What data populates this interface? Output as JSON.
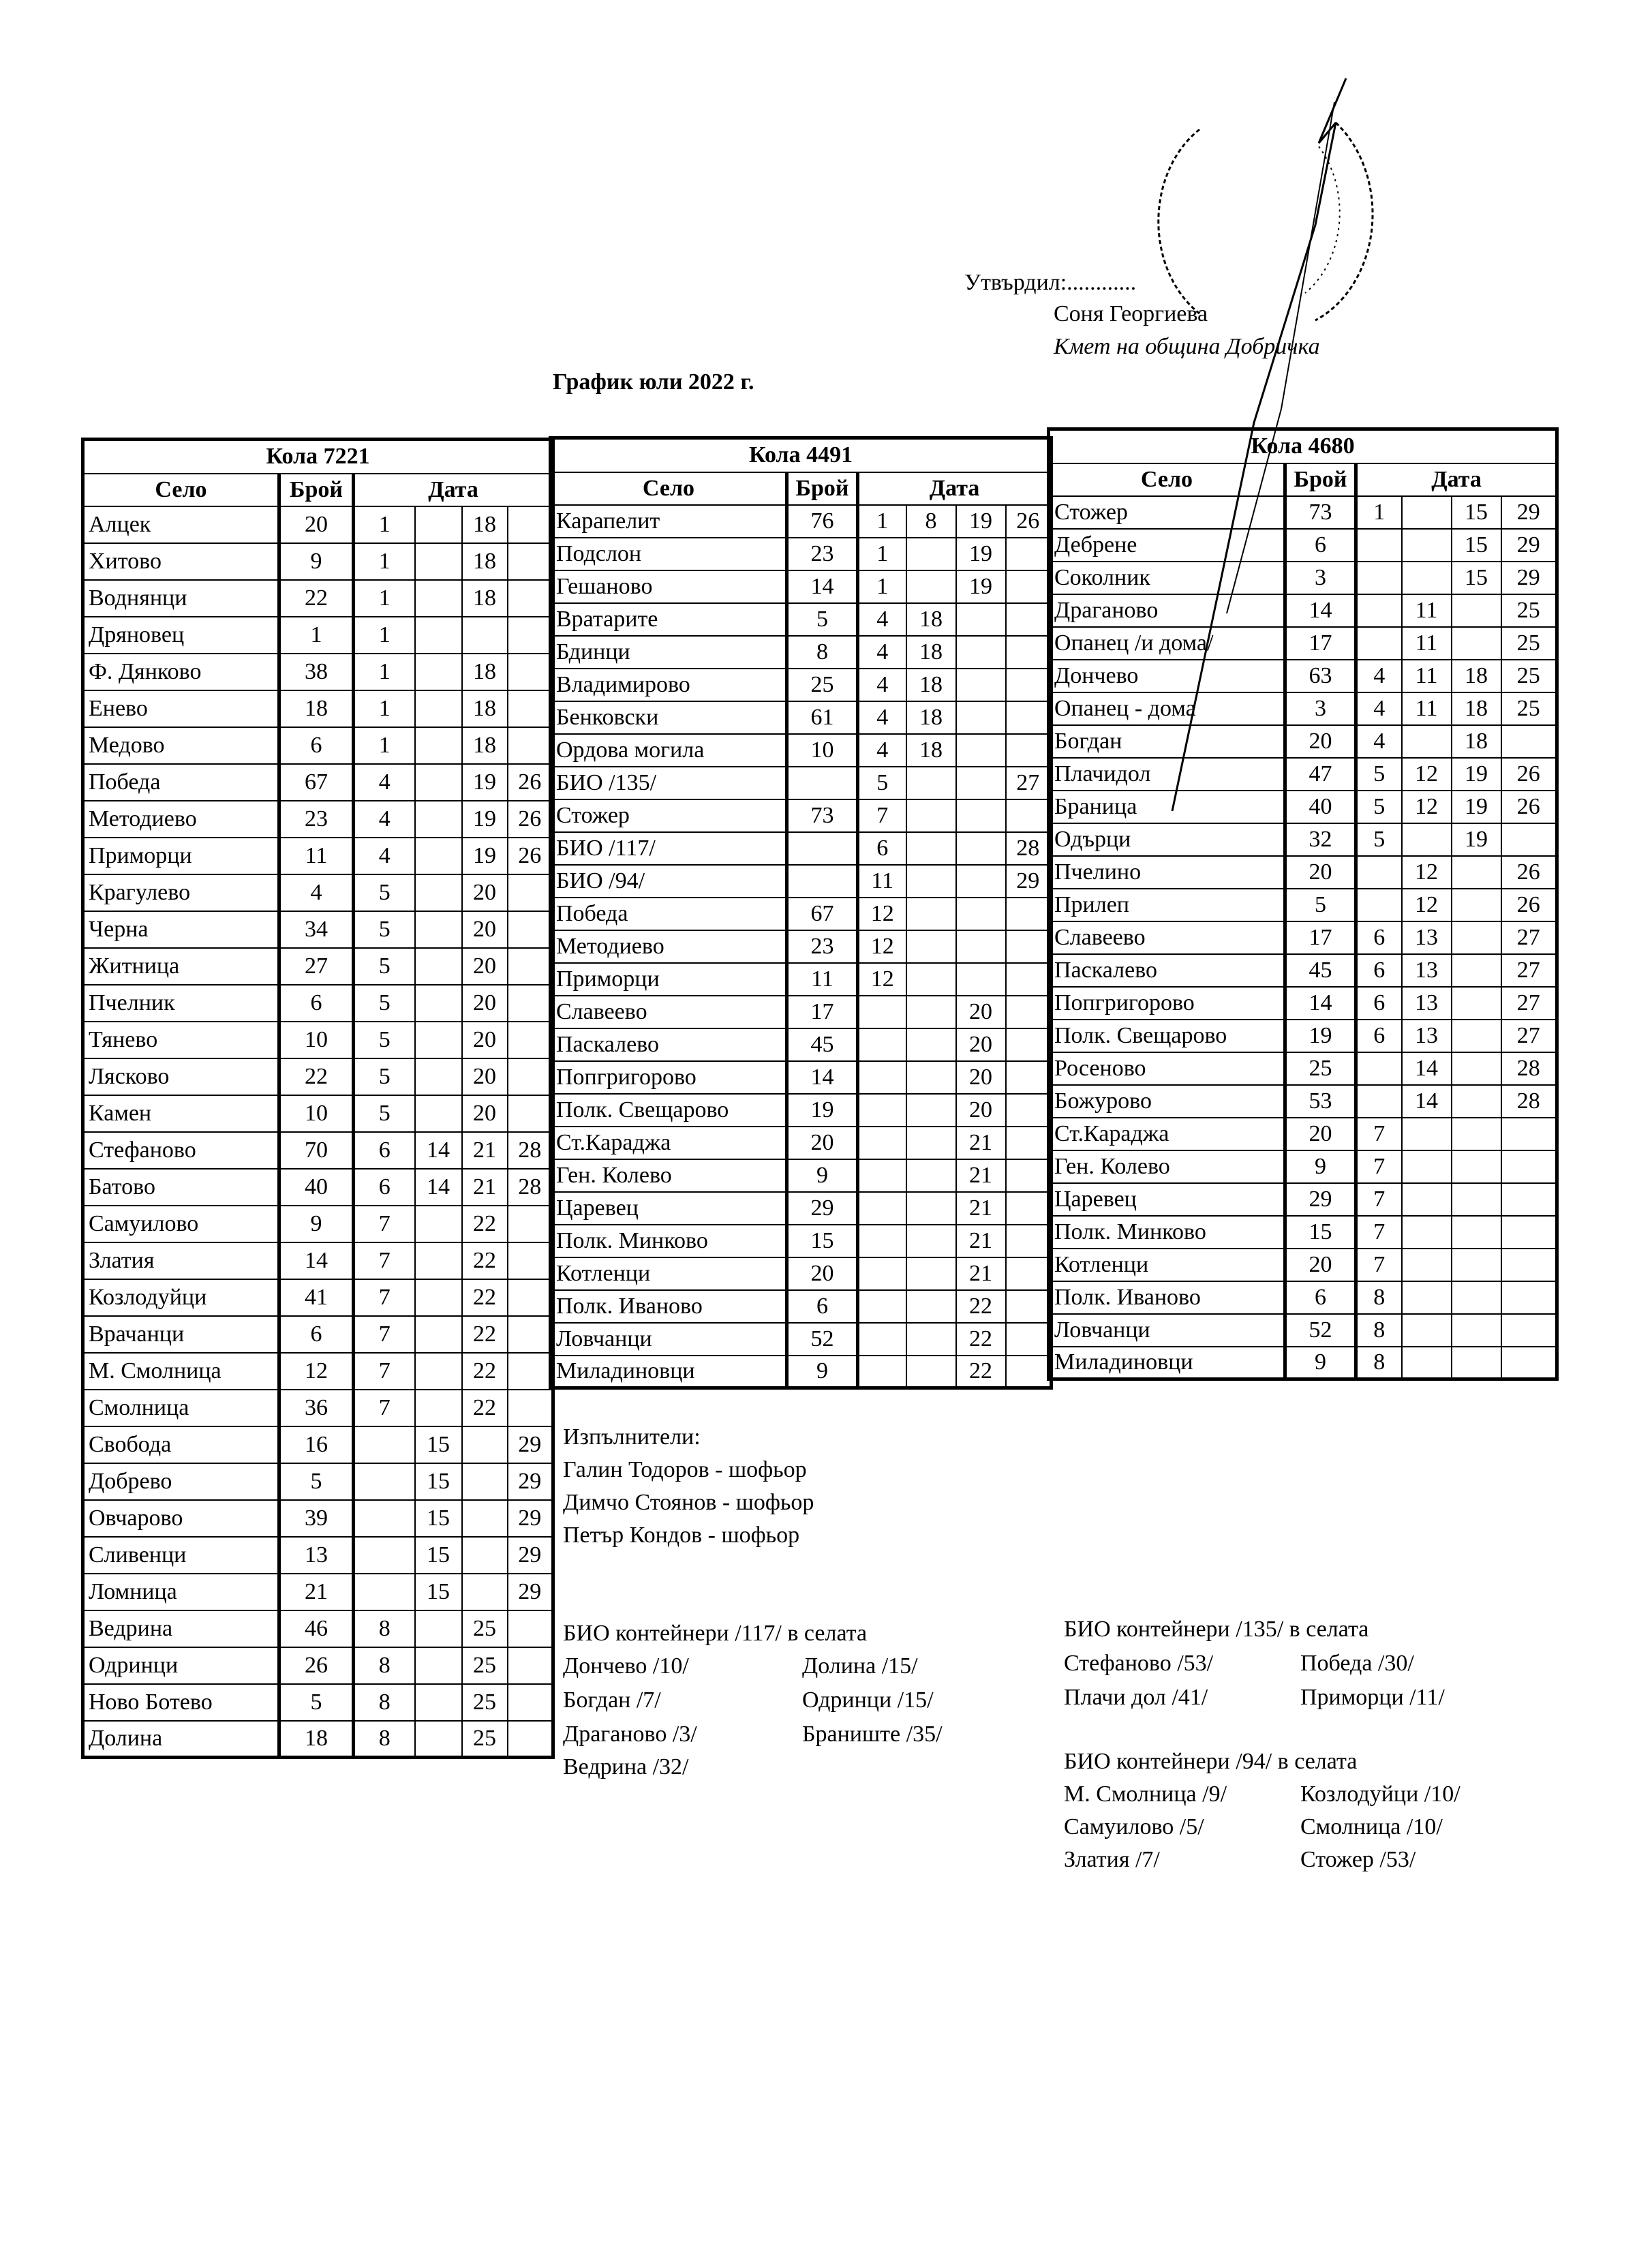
{
  "approval": {
    "approved_by": "Утвърдил:............",
    "name": "Соня Георгиева",
    "position": "Кмет  на община Добричка"
  },
  "title": "График юли 2022 г.",
  "headers": {
    "village": "Село",
    "count": "Брой",
    "date": "Дата"
  },
  "trucks": [
    {
      "label": "Кола 7221",
      "rows": [
        [
          "Алцек",
          "20",
          "1",
          "",
          "18",
          ""
        ],
        [
          "Хитово",
          "9",
          "1",
          "",
          "18",
          ""
        ],
        [
          "Воднянци",
          "22",
          "1",
          "",
          "18",
          ""
        ],
        [
          "Дряновец",
          "1",
          "1",
          "",
          "",
          ""
        ],
        [
          "Ф. Дянково",
          "38",
          "1",
          "",
          "18",
          ""
        ],
        [
          "Енево",
          "18",
          "1",
          "",
          "18",
          ""
        ],
        [
          "Медово",
          "6",
          "1",
          "",
          "18",
          ""
        ],
        [
          "Победа",
          "67",
          "4",
          "",
          "19",
          "26"
        ],
        [
          "Методиево",
          "23",
          "4",
          "",
          "19",
          "26"
        ],
        [
          "Приморци",
          "11",
          "4",
          "",
          "19",
          "26"
        ],
        [
          "Крагулево",
          "4",
          "5",
          "",
          "20",
          ""
        ],
        [
          "Черна",
          "34",
          "5",
          "",
          "20",
          ""
        ],
        [
          "Житница",
          "27",
          "5",
          "",
          "20",
          ""
        ],
        [
          "Пчелник",
          "6",
          "5",
          "",
          "20",
          ""
        ],
        [
          "Тянево",
          "10",
          "5",
          "",
          "20",
          ""
        ],
        [
          "Лясково",
          "22",
          "5",
          "",
          "20",
          ""
        ],
        [
          "Камен",
          "10",
          "5",
          "",
          "20",
          ""
        ],
        [
          "Стефаново",
          "70",
          "6",
          "14",
          "21",
          "28"
        ],
        [
          "Батово",
          "40",
          "6",
          "14",
          "21",
          "28"
        ],
        [
          "Самуилово",
          "9",
          "7",
          "",
          "22",
          ""
        ],
        [
          "Златия",
          "14",
          "7",
          "",
          "22",
          ""
        ],
        [
          "Козлодуйци",
          "41",
          "7",
          "",
          "22",
          ""
        ],
        [
          "Врачанци",
          "6",
          "7",
          "",
          "22",
          ""
        ],
        [
          "М. Смолница",
          "12",
          "7",
          "",
          "22",
          ""
        ],
        [
          "Смолница",
          "36",
          "7",
          "",
          "22",
          ""
        ],
        [
          "Свобода",
          "16",
          "",
          "15",
          "",
          "29"
        ],
        [
          "Добрево",
          "5",
          "",
          "15",
          "",
          "29"
        ],
        [
          "Овчарово",
          "39",
          "",
          "15",
          "",
          "29"
        ],
        [
          "Сливенци",
          "13",
          "",
          "15",
          "",
          "29"
        ],
        [
          "Ломница",
          "21",
          "",
          "15",
          "",
          "29"
        ],
        [
          "Ведрина",
          "46",
          "8",
          "",
          "25",
          ""
        ],
        [
          "Одринци",
          "26",
          "8",
          "",
          "25",
          ""
        ],
        [
          "Ново Ботево",
          "5",
          "8",
          "",
          "25",
          ""
        ],
        [
          "Долина",
          "18",
          "8",
          "",
          "25",
          ""
        ]
      ]
    },
    {
      "label": "Кола 4491",
      "rows": [
        [
          "Карапелит",
          "76",
          "1",
          "8",
          "19",
          "26"
        ],
        [
          "Подслон",
          "23",
          "1",
          "",
          "19",
          ""
        ],
        [
          "Гешаново",
          "14",
          "1",
          "",
          "19",
          ""
        ],
        [
          "Вратарите",
          "5",
          "4",
          "18",
          "",
          ""
        ],
        [
          "Бдинци",
          "8",
          "4",
          "18",
          "",
          ""
        ],
        [
          "Владимирово",
          "25",
          "4",
          "18",
          "",
          ""
        ],
        [
          "Бенковски",
          "61",
          "4",
          "18",
          "",
          ""
        ],
        [
          "Ордова могила",
          "10",
          "4",
          "18",
          "",
          ""
        ],
        [
          "БИО /135/",
          "",
          "5",
          "",
          "",
          "27"
        ],
        [
          "Стожер",
          "73",
          "7",
          "",
          "",
          ""
        ],
        [
          "БИО /117/",
          "",
          "6",
          "",
          "",
          "28"
        ],
        [
          "БИО /94/",
          "",
          "11",
          "",
          "",
          "29"
        ],
        [
          "Победа",
          "67",
          "12",
          "",
          "",
          ""
        ],
        [
          "Методиево",
          "23",
          "12",
          "",
          "",
          ""
        ],
        [
          "Приморци",
          "11",
          "12",
          "",
          "",
          ""
        ],
        [
          "Славеево",
          "17",
          "",
          "",
          "20",
          ""
        ],
        [
          "Паскалево",
          "45",
          "",
          "",
          "20",
          ""
        ],
        [
          "Попгригорово",
          "14",
          "",
          "",
          "20",
          ""
        ],
        [
          "Полк. Свещарово",
          "19",
          "",
          "",
          "20",
          ""
        ],
        [
          "Ст.Караджа",
          "20",
          "",
          "",
          "21",
          ""
        ],
        [
          "Ген. Колево",
          "9",
          "",
          "",
          "21",
          ""
        ],
        [
          "Царевец",
          "29",
          "",
          "",
          "21",
          ""
        ],
        [
          "Полк. Минково",
          "15",
          "",
          "",
          "21",
          ""
        ],
        [
          "Котленци",
          "20",
          "",
          "",
          "21",
          ""
        ],
        [
          "Полк. Иваново",
          "6",
          "",
          "",
          "22",
          ""
        ],
        [
          "Ловчанци",
          "52",
          "",
          "",
          "22",
          ""
        ],
        [
          "Миладиновци",
          "9",
          "",
          "",
          "22",
          ""
        ]
      ]
    },
    {
      "label": "Кола 4680",
      "rows": [
        [
          "Стожер",
          "73",
          "1",
          "",
          "15",
          "29"
        ],
        [
          "Дебрене",
          "6",
          "",
          "",
          "15",
          "29"
        ],
        [
          "Соколник",
          "3",
          "",
          "",
          "15",
          "29"
        ],
        [
          "Драганово",
          "14",
          "",
          "11",
          "",
          "25"
        ],
        [
          "Опанец /и дома/",
          "17",
          "",
          "11",
          "",
          "25"
        ],
        [
          "Дончево",
          "63",
          "4",
          "11",
          "18",
          "25"
        ],
        [
          "Опанец - дома",
          "3",
          "4",
          "11",
          "18",
          "25"
        ],
        [
          "Богдан",
          "20",
          "4",
          "",
          "18",
          ""
        ],
        [
          "Плачидол",
          "47",
          "5",
          "12",
          "19",
          "26"
        ],
        [
          "Браница",
          "40",
          "5",
          "12",
          "19",
          "26"
        ],
        [
          "Одърци",
          "32",
          "5",
          "",
          "19",
          ""
        ],
        [
          "Пчелино",
          "20",
          "",
          "12",
          "",
          "26"
        ],
        [
          "Прилеп",
          "5",
          "",
          "12",
          "",
          "26"
        ],
        [
          "Славеево",
          "17",
          "6",
          "13",
          "",
          "27"
        ],
        [
          "Паскалево",
          "45",
          "6",
          "13",
          "",
          "27"
        ],
        [
          "Попгригорово",
          "14",
          "6",
          "13",
          "",
          "27"
        ],
        [
          "Полк. Свещарово",
          "19",
          "6",
          "13",
          "",
          "27"
        ],
        [
          "Росеново",
          "25",
          "",
          "14",
          "",
          "28"
        ],
        [
          "Божурово",
          "53",
          "",
          "14",
          "",
          "28"
        ],
        [
          "Ст.Караджа",
          "20",
          "7",
          "",
          "",
          ""
        ],
        [
          "Ген. Колево",
          "9",
          "7",
          "",
          "",
          ""
        ],
        [
          "Царевец",
          "29",
          "7",
          "",
          "",
          ""
        ],
        [
          "Полк. Минково",
          "15",
          "7",
          "",
          "",
          ""
        ],
        [
          "Котленци",
          "20",
          "7",
          "",
          "",
          ""
        ],
        [
          "Полк. Иваново",
          "6",
          "8",
          "",
          "",
          ""
        ],
        [
          "Ловчанци",
          "52",
          "8",
          "",
          "",
          ""
        ],
        [
          "Миладиновци",
          "9",
          "8",
          "",
          "",
          ""
        ]
      ]
    }
  ],
  "executors": {
    "heading": "Изпълнители:",
    "people": [
      "Галин Тодоров - шофьор",
      "Димчо Стоянов - шофьор",
      "Петър Кондов - шофьор"
    ]
  },
  "bio": [
    {
      "heading": "БИО контейнери /117/ в селата",
      "left": [
        "Дончево /10/",
        "Богдан /7/",
        "Драганово /3/",
        "Ведрина /32/"
      ],
      "right": [
        "Долина /15/",
        "Одринци /15/",
        "Браниште /35/"
      ]
    },
    {
      "heading": "БИО контейнери /135/ в селата",
      "left": [
        "Стефаново /53/",
        "Плачи дол /41/"
      ],
      "right": [
        "Победа /30/",
        "Приморци /11/"
      ]
    },
    {
      "heading": "БИО контейнери /94/ в селата",
      "left": [
        "М. Смолница /9/",
        "Самуилово /5/",
        "Златия /7/"
      ],
      "right": [
        "Козлодуйци /10/",
        "Смолница /10/",
        "Стожер /53/"
      ]
    }
  ]
}
